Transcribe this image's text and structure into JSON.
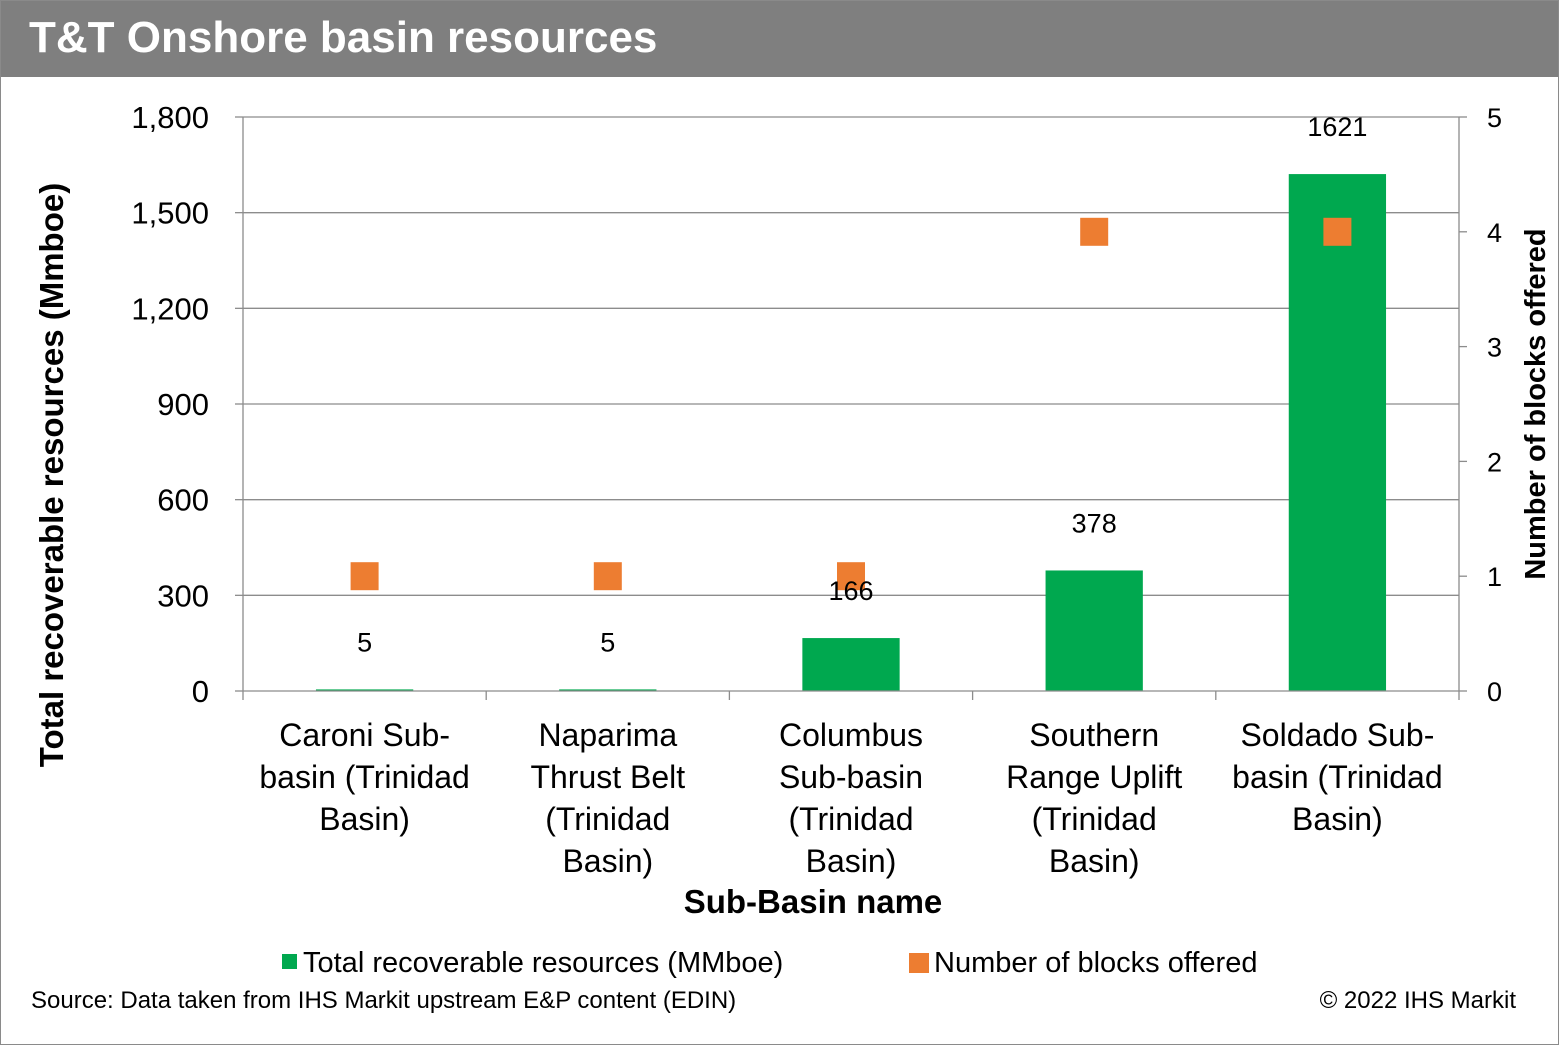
{
  "header": {
    "title": "T&T Onshore basin resources"
  },
  "footer": {
    "source": "Source: Data taken from IHS Markit upstream E&P content (EDIN)",
    "copyright": "© 2022 IHS Markit"
  },
  "chart_data": {
    "type": "bar",
    "title": "T&T Onshore basin resources",
    "xlabel": "Sub-Basin name",
    "ylabel": "Total recoverable resources (Mmboe)",
    "y2label": "Number of blocks offered",
    "ylim": [
      0,
      1800
    ],
    "y2lim": [
      0,
      5
    ],
    "yticks": [
      "0",
      "300",
      "600",
      "900",
      "1,200",
      "1,500",
      "1,800"
    ],
    "y2ticks": [
      "0",
      "1",
      "2",
      "3",
      "4",
      "5"
    ],
    "grid": true,
    "legend_position": "bottom",
    "categories": [
      [
        "Caroni Sub-",
        "basin (Trinidad",
        "Basin)"
      ],
      [
        "Naparima",
        "Thrust Belt",
        "(Trinidad",
        "Basin)"
      ],
      [
        "Columbus",
        "Sub-basin",
        "(Trinidad",
        "Basin)"
      ],
      [
        "Southern",
        "Range Uplift",
        "(Trinidad",
        "Basin)"
      ],
      [
        "Soldado Sub-",
        "basin (Trinidad",
        "Basin)"
      ]
    ],
    "series": [
      {
        "name": "Total recoverable resources (MMboe)",
        "type": "bar",
        "axis": "left",
        "color": "#00a84f",
        "values": [
          5,
          5,
          166,
          378,
          1621
        ],
        "labels": [
          "5",
          "5",
          "166",
          "378",
          "1621"
        ]
      },
      {
        "name": "Number of blocks offered",
        "type": "scatter",
        "axis": "right",
        "color": "#ed7d31",
        "values": [
          1,
          1,
          1,
          4,
          4
        ]
      }
    ]
  }
}
